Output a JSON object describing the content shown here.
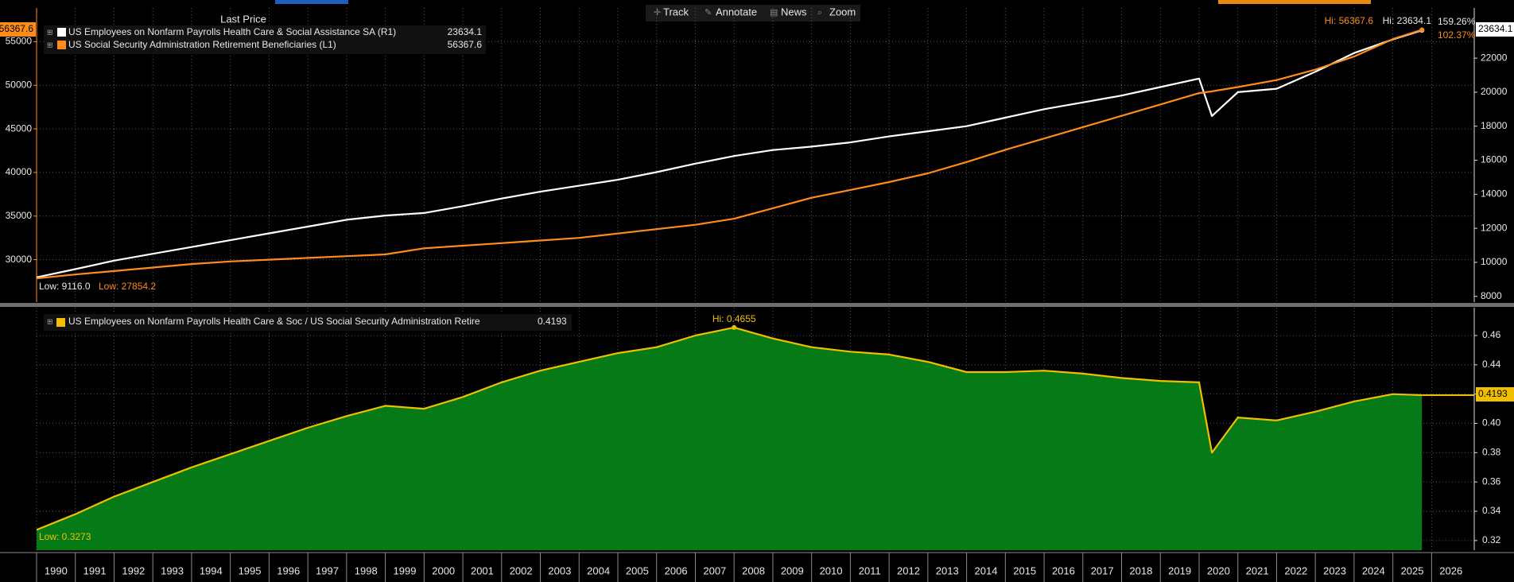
{
  "toolbar": [
    "Track",
    "Annotate",
    "News",
    "Zoom"
  ],
  "chart_data": [
    {
      "type": "line",
      "legend_header": "Last Price",
      "x": [
        1990,
        1991,
        1992,
        1993,
        1994,
        1995,
        1996,
        1997,
        1998,
        1999,
        2000,
        2001,
        2002,
        2003,
        2004,
        2005,
        2006,
        2007,
        2008,
        2009,
        2010,
        2011,
        2012,
        2013,
        2014,
        2015,
        2016,
        2017,
        2018,
        2019,
        2020,
        2020.33,
        2021,
        2022,
        2023,
        2024,
        2025,
        2025.75
      ],
      "xlim": [
        1990,
        2027.1
      ],
      "ylim": [
        25130,
        58870
      ],
      "yticks": [
        30000,
        35000,
        40000,
        45000,
        50000,
        55000
      ],
      "y2lim": [
        7660,
        24950
      ],
      "y2ticks": [
        8000,
        10000,
        12000,
        14000,
        16000,
        18000,
        20000,
        22000
      ],
      "grid": true,
      "series": [
        {
          "name": "US Employees on Nonfarm Payrolls Health Care & Social Assistance SA  (R1)",
          "color": "#ffffff",
          "axis": "y2",
          "last_label": "23634.1",
          "hi_label": "Hi: 23634.1",
          "low_label": "Low: 9116.0",
          "change_label": "159.26%",
          "values": [
            9116,
            9600,
            10100,
            10500,
            10900,
            11300,
            11700,
            12100,
            12500,
            12750,
            12900,
            13300,
            13750,
            14150,
            14500,
            14850,
            15300,
            15800,
            16250,
            16600,
            16800,
            17050,
            17400,
            17700,
            18000,
            18500,
            19000,
            19400,
            19800,
            20300,
            20800,
            18600,
            20000,
            20200,
            21200,
            22300,
            23100,
            23634.1
          ]
        },
        {
          "name": "US Social Security Administration Retirement Beneficiaries  (L1)",
          "color": "#ff8c1a",
          "axis": "y",
          "last_label": "56367.6",
          "hi_label": "Hi: 56367.6",
          "low_label": "Low: 27854.2",
          "change_label": "102.37%",
          "values": [
            27854.2,
            28300,
            28700,
            29100,
            29500,
            29800,
            30000,
            30200,
            30400,
            30600,
            31300,
            31600,
            31900,
            32200,
            32500,
            33000,
            33500,
            34000,
            34700,
            35900,
            37100,
            38000,
            38900,
            39900,
            41200,
            42600,
            43900,
            45200,
            46500,
            47800,
            49100,
            49300,
            49800,
            50600,
            51800,
            53300,
            55300,
            56367.6
          ]
        }
      ]
    },
    {
      "type": "area",
      "x": [
        1990,
        1991,
        1992,
        1993,
        1994,
        1995,
        1996,
        1997,
        1998,
        1999,
        2000,
        2001,
        2002,
        2003,
        2004,
        2005,
        2006,
        2007,
        2008,
        2009,
        2010,
        2011,
        2012,
        2013,
        2014,
        2015,
        2016,
        2017,
        2018,
        2019,
        2020,
        2020.33,
        2021,
        2022,
        2023,
        2024,
        2025,
        2025.75
      ],
      "xlim": [
        1990,
        2027.1
      ],
      "xticks": [
        1990,
        1991,
        1992,
        1993,
        1994,
        1995,
        1996,
        1997,
        1998,
        1999,
        2000,
        2001,
        2002,
        2003,
        2004,
        2005,
        2006,
        2007,
        2008,
        2009,
        2010,
        2011,
        2012,
        2013,
        2014,
        2015,
        2016,
        2017,
        2018,
        2019,
        2020,
        2021,
        2022,
        2023,
        2024,
        2025,
        2026
      ],
      "ylim": [
        0.3134,
        0.479
      ],
      "yticks": [
        0.32,
        0.34,
        0.36,
        0.38,
        {
          "value": 0.4,
          "label": "0.40"
        },
        0.42,
        0.44,
        0.46
      ],
      "yaxis_position": "right",
      "grid": true,
      "series": [
        {
          "name": "US Employees on Nonfarm Payrolls Health Care & Soc / US Social Security Administration Retire",
          "color": "#f0c000",
          "fill": "#077a18",
          "last_label": "0.4193",
          "hi_label": "Hi: 0.4655",
          "low_label": "Low: 0.3273",
          "values": [
            0.3273,
            0.338,
            0.35,
            0.36,
            0.37,
            0.379,
            0.388,
            0.397,
            0.405,
            0.412,
            0.41,
            0.418,
            0.428,
            0.436,
            0.442,
            0.448,
            0.452,
            0.46,
            0.4655,
            0.458,
            0.452,
            0.449,
            0.447,
            0.442,
            0.435,
            0.435,
            0.436,
            0.434,
            0.431,
            0.429,
            0.428,
            0.38,
            0.404,
            0.402,
            0.408,
            0.415,
            0.42,
            0.4193
          ]
        }
      ]
    }
  ]
}
